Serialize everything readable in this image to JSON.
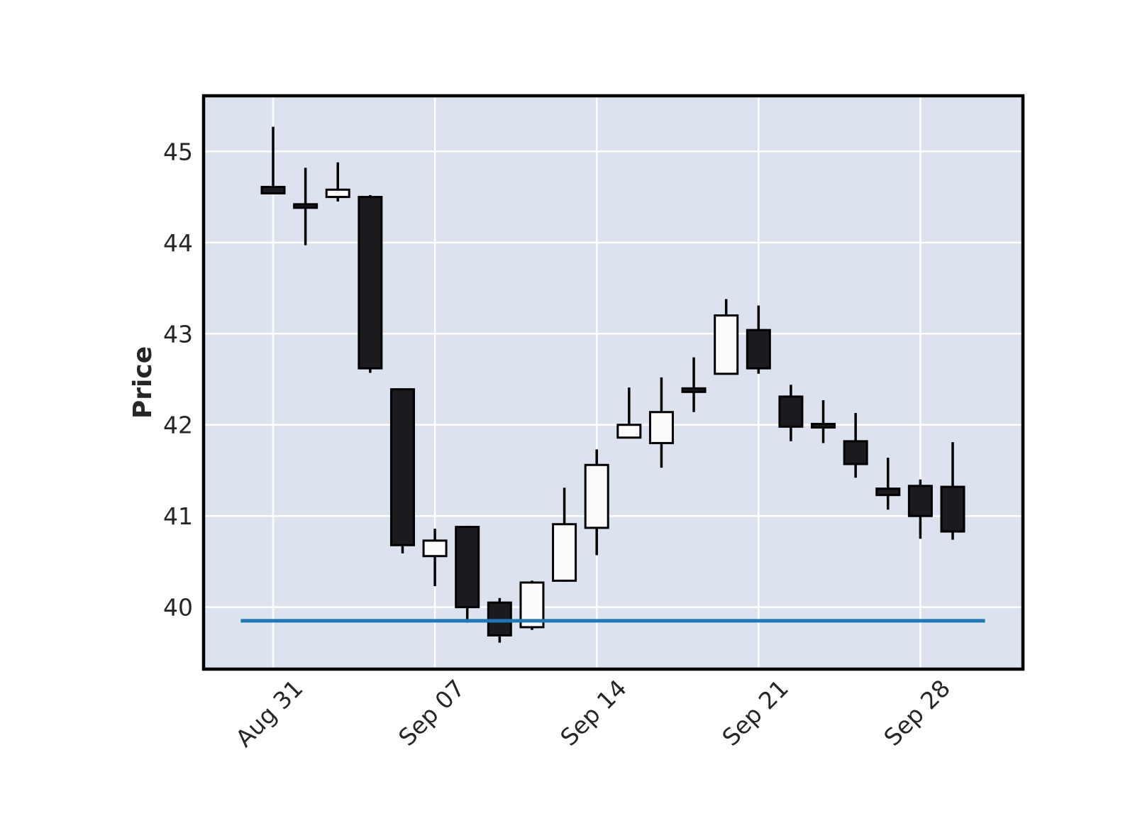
{
  "figure": {
    "ylabel": "Price"
  },
  "chart_data": {
    "type": "candlestick",
    "title": "",
    "xlabel": "",
    "ylabel": "Price",
    "grid": true,
    "legend_position": "none",
    "y_ticks": [
      40,
      41,
      42,
      43,
      44,
      45
    ],
    "ylim": [
      39.32,
      45.61
    ],
    "x_tick_labels": [
      "Aug 31",
      "Sep 07",
      "Sep 14",
      "Sep 21",
      "Sep 28"
    ],
    "x_tick_indices": [
      0,
      5,
      10,
      15,
      20
    ],
    "n_candles": 22,
    "candles": [
      {
        "open": 44.61,
        "high": 45.27,
        "low": 44.53,
        "close": 44.54
      },
      {
        "open": 44.42,
        "high": 44.82,
        "low": 43.97,
        "close": 44.4
      },
      {
        "open": 44.5,
        "high": 44.88,
        "low": 44.45,
        "close": 44.58
      },
      {
        "open": 44.5,
        "high": 44.52,
        "low": 42.57,
        "close": 42.62
      },
      {
        "open": 42.39,
        "high": 42.4,
        "low": 40.59,
        "close": 40.68
      },
      {
        "open": 40.56,
        "high": 40.86,
        "low": 40.23,
        "close": 40.73
      },
      {
        "open": 40.88,
        "high": 40.89,
        "low": 39.83,
        "close": 40.0
      },
      {
        "open": 40.05,
        "high": 40.1,
        "low": 39.61,
        "close": 39.69
      },
      {
        "open": 39.78,
        "high": 40.29,
        "low": 39.75,
        "close": 40.27
      },
      {
        "open": 40.29,
        "high": 41.31,
        "low": 40.28,
        "close": 40.91
      },
      {
        "open": 40.87,
        "high": 41.73,
        "low": 40.57,
        "close": 41.56
      },
      {
        "open": 41.86,
        "high": 42.41,
        "low": 41.85,
        "close": 42.0
      },
      {
        "open": 41.8,
        "high": 42.52,
        "low": 41.53,
        "close": 42.14
      },
      {
        "open": 42.4,
        "high": 42.74,
        "low": 42.14,
        "close": 42.37
      },
      {
        "open": 42.56,
        "high": 43.38,
        "low": 42.55,
        "close": 43.2
      },
      {
        "open": 43.04,
        "high": 43.31,
        "low": 42.56,
        "close": 42.62
      },
      {
        "open": 42.31,
        "high": 42.44,
        "low": 41.82,
        "close": 41.98
      },
      {
        "open": 42.01,
        "high": 42.27,
        "low": 41.8,
        "close": 41.99
      },
      {
        "open": 41.82,
        "high": 42.13,
        "low": 41.42,
        "close": 41.57
      },
      {
        "open": 41.3,
        "high": 41.64,
        "low": 41.07,
        "close": 41.23
      },
      {
        "open": 41.33,
        "high": 41.4,
        "low": 40.75,
        "close": 41.0
      },
      {
        "open": 41.32,
        "high": 41.81,
        "low": 40.74,
        "close": 40.83
      }
    ],
    "hline": {
      "value": 39.85,
      "color": "#1f77b4"
    },
    "colors": {
      "up_fill": "#fcfcfd",
      "down_fill": "#1b1b1f",
      "candle_edge": "#000000",
      "wick": "#000000",
      "plot_bg": "#dce2ee",
      "gridline": "#ffffff",
      "spine": "#000000",
      "tick_text": "#262626"
    }
  }
}
